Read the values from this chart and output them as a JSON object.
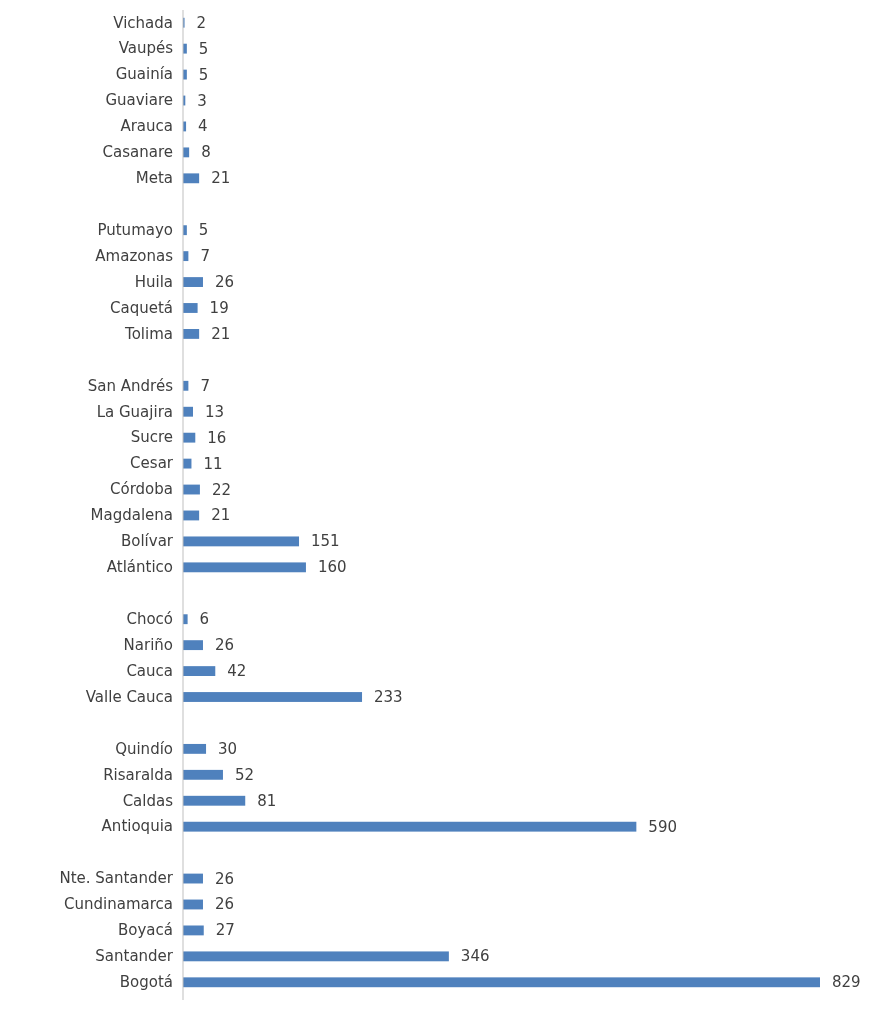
{
  "chart_data": {
    "type": "bar",
    "orientation": "horizontal",
    "data_labels": true,
    "color": "#4f81bd",
    "categories": [
      "Vichada",
      "Vaupés",
      "Guainía",
      "Guaviare",
      "Arauca",
      "Casanare",
      "Meta",
      null,
      "Putumayo",
      "Amazonas",
      "Huila",
      "Caquetá",
      "Tolima",
      null,
      "San Andrés",
      "La Guajira",
      "Sucre",
      "Cesar",
      "Córdoba",
      "Magdalena",
      "Bolívar",
      "Atlántico",
      null,
      "Chocó",
      "Nariño",
      "Cauca",
      "Valle Cauca",
      null,
      "Quindío",
      "Risaralda",
      "Caldas",
      "Antioquia",
      null,
      "Nte. Santander",
      "Cundinamarca",
      "Boyacá",
      "Santander",
      "Bogotá"
    ],
    "values": [
      2,
      5,
      5,
      3,
      4,
      8,
      21,
      null,
      5,
      7,
      26,
      19,
      21,
      null,
      7,
      13,
      16,
      11,
      22,
      21,
      151,
      160,
      null,
      6,
      26,
      42,
      233,
      null,
      30,
      52,
      81,
      590,
      null,
      26,
      26,
      27,
      346,
      829
    ]
  }
}
